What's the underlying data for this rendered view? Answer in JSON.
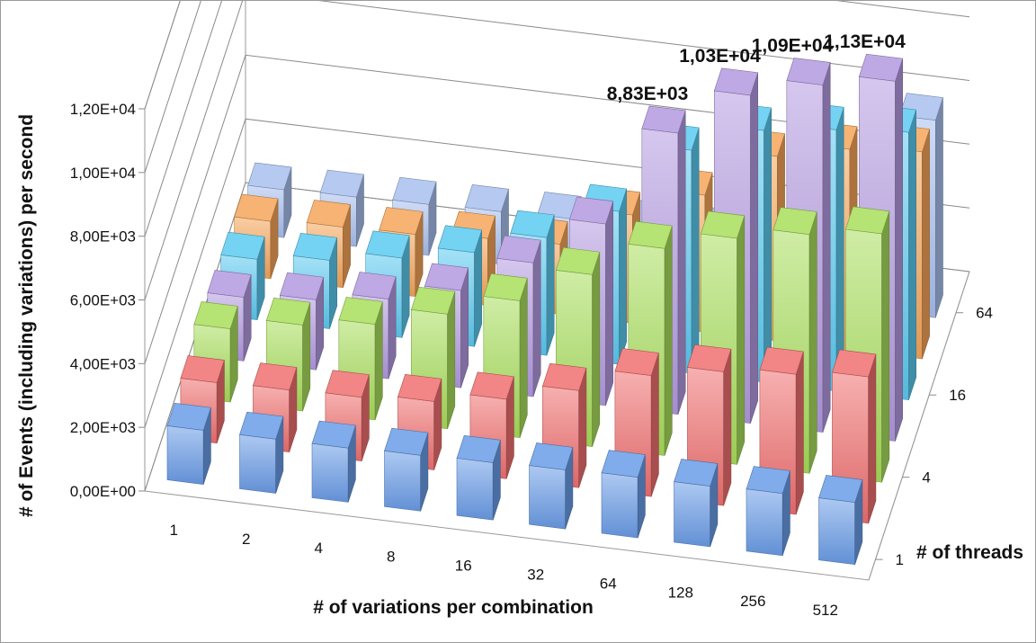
{
  "chart_data": {
    "type": "bar",
    "subtype": "3d-clustered-column",
    "title": "",
    "xlabel": "# of variations per combination",
    "ylabel": "# of Events (including variations) per second",
    "depth_label": "# of threads",
    "categories": [
      "1",
      "2",
      "4",
      "8",
      "16",
      "32",
      "64",
      "128",
      "256",
      "512"
    ],
    "depth_tick_labels": [
      "1",
      "4",
      "16",
      "64"
    ],
    "y_tick_labels": [
      "0,00E+00",
      "2,00E+03",
      "4,00E+03",
      "6,00E+03",
      "8,00E+03",
      "1,00E+04",
      "1,20E+04"
    ],
    "ylim": [
      0,
      12000
    ],
    "grid": true,
    "legend": "none",
    "series": [
      {
        "thread_index": 1,
        "color": "#6a9de8",
        "values": [
          1700,
          1700,
          1700,
          1750,
          1800,
          1850,
          1900,
          1900,
          1950,
          1950
        ]
      },
      {
        "thread_index": 2,
        "color": "#f07070",
        "values": [
          1900,
          1950,
          2000,
          2150,
          2500,
          3050,
          3800,
          4200,
          4400,
          4600
        ]
      },
      {
        "thread_index": 3,
        "color": "#a8de5c",
        "values": [
          2300,
          2700,
          3000,
          3600,
          4300,
          5400,
          6500,
          7100,
          7500,
          7800
        ]
      },
      {
        "thread_index": 4,
        "color": "#b39ae0",
        "values": [
          2000,
          2200,
          2500,
          3050,
          4200,
          5700,
          8830,
          10300,
          10900,
          11300
        ]
      },
      {
        "thread_index": 5,
        "color": "#5ccaf0",
        "values": [
          1900,
          2150,
          2500,
          2950,
          3700,
          4800,
          7000,
          7900,
          8200,
          8400
        ]
      },
      {
        "thread_index": 6,
        "color": "#f5a55a",
        "values": [
          1800,
          1900,
          1950,
          2100,
          2200,
          3400,
          4300,
          5800,
          6300,
          6500
        ]
      },
      {
        "thread_index": 7,
        "color": "#a8c0ee",
        "values": [
          1500,
          1550,
          1600,
          1650,
          1700,
          1800,
          1850,
          1900,
          1950,
          6200
        ]
      }
    ],
    "data_labels": [
      {
        "text": "8,83E+03",
        "category": "64"
      },
      {
        "text": "1,03E+04",
        "category": "128"
      },
      {
        "text": "1,09E+04",
        "category": "256"
      },
      {
        "text": "1,13E+04",
        "category": "512"
      }
    ]
  }
}
